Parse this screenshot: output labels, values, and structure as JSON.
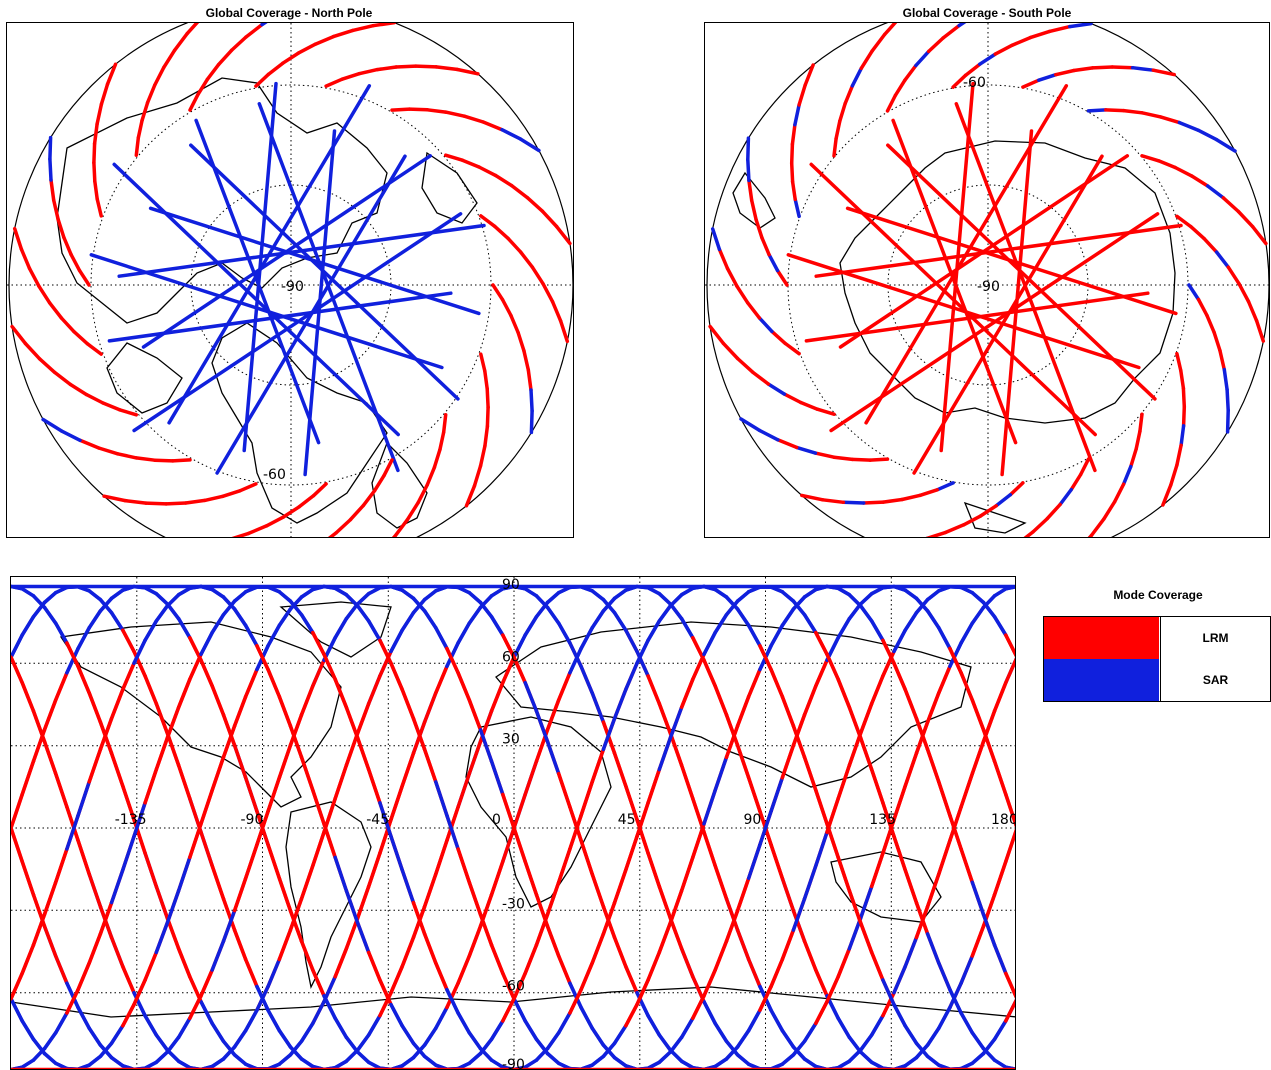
{
  "north": {
    "title": "Global Coverage - North Pole",
    "labels": [
      "-90",
      "-60"
    ]
  },
  "south": {
    "title": "Global Coverage - South Pole",
    "labels": [
      "-60",
      "-90"
    ]
  },
  "world": {
    "lon_labels": [
      "-135",
      "-90",
      "-45",
      "0",
      "45",
      "90",
      "135",
      "180"
    ],
    "lat_labels": [
      "90",
      "60",
      "30",
      "-30",
      "-60",
      "-90"
    ]
  },
  "legend": {
    "title": "Mode Coverage",
    "items": [
      {
        "label": "LRM",
        "color": "#ff0000"
      },
      {
        "label": "SAR",
        "color": "#1020dd"
      }
    ]
  },
  "colors": {
    "lrm": "#ff0000",
    "sar": "#1020dd",
    "grid": "#000000",
    "coast": "#000000"
  }
}
